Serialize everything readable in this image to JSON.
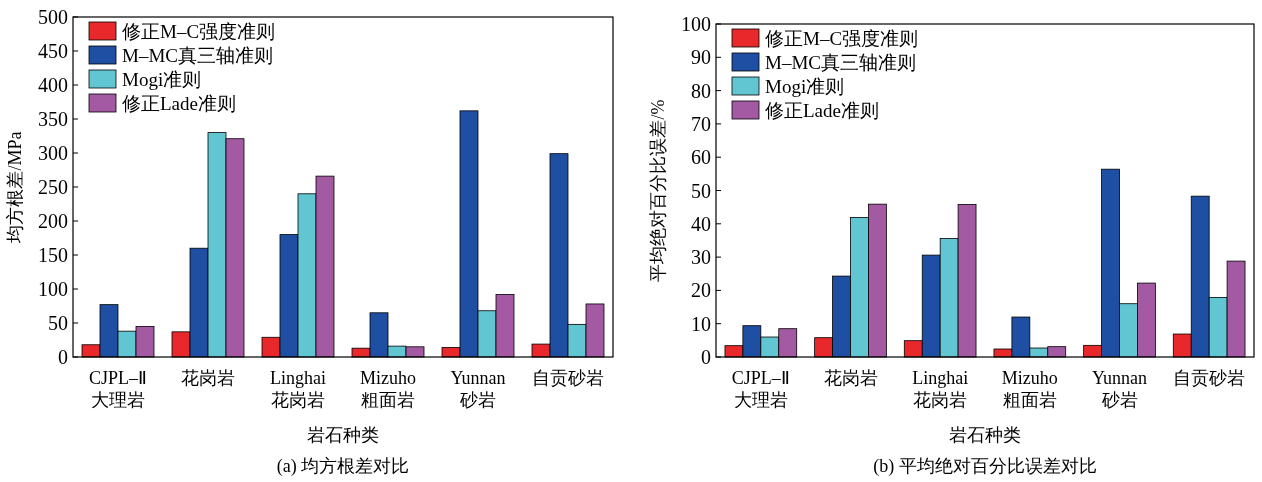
{
  "chart_data": [
    {
      "type": "bar",
      "title": "(a) 均方根差对比",
      "xlabel": "岩石种类",
      "ylabel": "均方根差/MPa",
      "categories": [
        "CJPL–Ⅱ\n大理岩",
        "花岗岩",
        "Linghai\n花岗岩",
        "Mizuho\n粗面岩",
        "Yunnan\n砂岩",
        "自贡砂岩"
      ],
      "series": [
        {
          "name": "修正M–C强度准则",
          "color": "#e8282b",
          "values": [
            18,
            37,
            29,
            13,
            14,
            19
          ]
        },
        {
          "name": "M–MC真三轴准则",
          "color": "#1f4fa2",
          "values": [
            77,
            160,
            180,
            65,
            362,
            299
          ]
        },
        {
          "name": "Mogi准则",
          "color": "#62c6d2",
          "values": [
            38,
            330,
            240,
            16,
            68,
            48
          ]
        },
        {
          "name": "修正Lade准则",
          "color": "#a45aa2",
          "values": [
            45,
            321,
            266,
            15,
            92,
            78
          ]
        }
      ],
      "ylim": [
        0,
        500
      ],
      "yticks": [
        0,
        50,
        100,
        150,
        200,
        250,
        300,
        350,
        400,
        450,
        500
      ],
      "legend": "top left",
      "grid": false
    },
    {
      "type": "bar",
      "title": "(b) 平均绝对百分比误差对比",
      "xlabel": "岩石种类",
      "ylabel": "平均绝对百分比误差/%",
      "categories": [
        "CJPL–Ⅱ\n大理岩",
        "花岗岩",
        "Linghai\n花岗岩",
        "Mizuho\n粗面岩",
        "Yunnan\n砂岩",
        "自贡砂岩"
      ],
      "series": [
        {
          "name": "修正M–C强度准则",
          "color": "#e8282b",
          "values": [
            3.4,
            5.8,
            4.9,
            2.4,
            3.5,
            6.9
          ]
        },
        {
          "name": "M–MC真三轴准则",
          "color": "#1f4fa2",
          "values": [
            9.4,
            24.3,
            30.6,
            12,
            56.4,
            48.3
          ]
        },
        {
          "name": "Mogi准则",
          "color": "#62c6d2",
          "values": [
            6,
            41.9,
            35.6,
            2.7,
            16,
            17.9
          ]
        },
        {
          "name": "修正Lade准则",
          "color": "#a45aa2",
          "values": [
            8.5,
            45.9,
            45.8,
            3.1,
            22.2,
            28.8
          ]
        }
      ],
      "ylim": [
        0,
        100
      ],
      "yticks": [
        0,
        10,
        20,
        30,
        40,
        50,
        60,
        70,
        80,
        90,
        100
      ],
      "legend": "top left",
      "grid": false
    }
  ]
}
